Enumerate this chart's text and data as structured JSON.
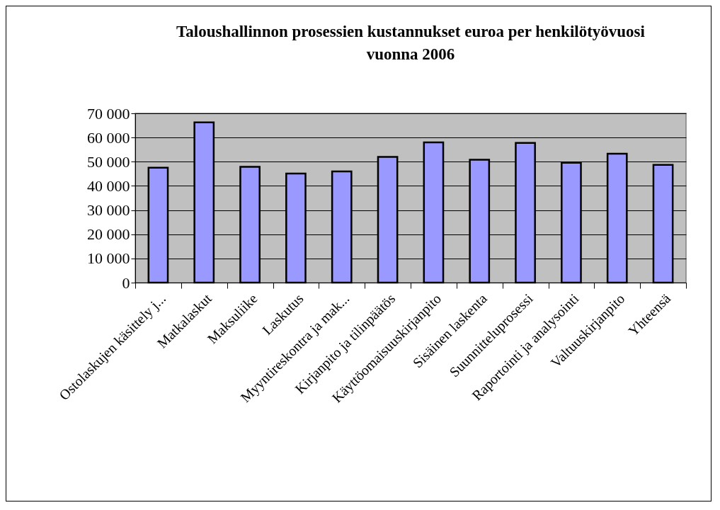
{
  "chart_data": {
    "type": "bar",
    "title": "Taloushallinnon prosessien kustannukset euroa per henkilötyövuosi vuonna 2006",
    "categories": [
      "Ostolaskujen käsittely j...",
      "Matkalaskut",
      "Maksuliike",
      "Laskutus",
      "Myyntireskontra ja mak...",
      "Kirjanpito ja tilinpäätös",
      "Käyttöomaisuuskirjanpito",
      "Sisäinen laskenta",
      "Suunnitteluprosessi",
      "Raportointi ja analysointi",
      "Valtuuskirjanpito",
      "Yhteensä"
    ],
    "values": [
      47500,
      66300,
      47900,
      45100,
      46000,
      52000,
      58000,
      50800,
      57800,
      49600,
      53300,
      48700
    ],
    "color": "#9999ff",
    "ylim": [
      0,
      70000
    ],
    "yticks": [
      {
        "value": 0,
        "label": "0"
      },
      {
        "value": 10000,
        "label": "10 000"
      },
      {
        "value": 20000,
        "label": "20 000"
      },
      {
        "value": 30000,
        "label": "30 000"
      },
      {
        "value": 40000,
        "label": "40 000"
      },
      {
        "value": 50000,
        "label": "50 000"
      },
      {
        "value": 60000,
        "label": "60 000"
      },
      {
        "value": 70000,
        "label": "70 000"
      }
    ],
    "grid": "y"
  }
}
